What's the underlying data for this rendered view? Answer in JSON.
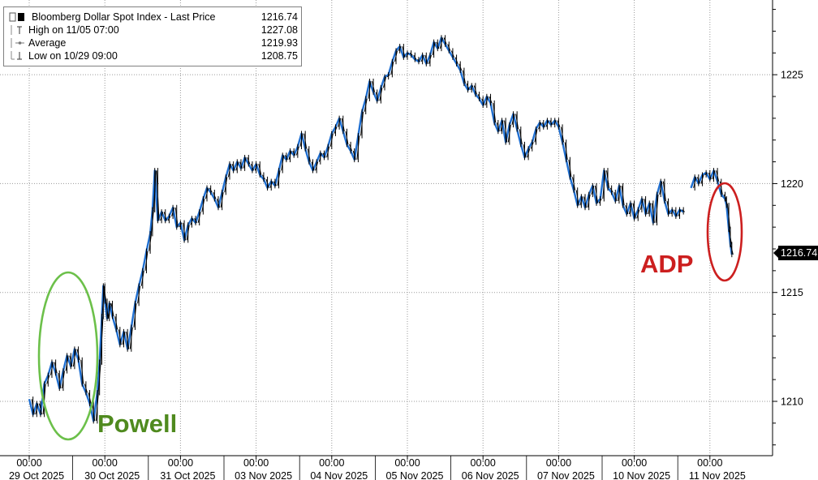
{
  "chart_data": {
    "type": "line",
    "title": "Bloomberg Dollar Spot Index - Last Price",
    "legend": [
      {
        "key": "last",
        "label": "Bloomberg Dollar Spot Index - Last Price",
        "value": "1216.74"
      },
      {
        "key": "high",
        "label": "High on 11/05 07:00",
        "value": "1227.08"
      },
      {
        "key": "avg",
        "label": "Average",
        "value": "1219.93"
      },
      {
        "key": "low",
        "label": "Low on 10/29 09:00",
        "value": "1208.75"
      }
    ],
    "last_price_label": "1216.74",
    "ylim": [
      1207.5,
      1228.3
    ],
    "y_ticks": [
      1210,
      1215,
      1220,
      1225
    ],
    "x_tick_time_label": "00:00",
    "x_days": [
      "29 Oct 2025",
      "30 Oct 2025",
      "31 Oct 2025",
      "03 Nov 2025",
      "04 Nov 2025",
      "05 Nov 2025",
      "06 Nov 2025",
      "07 Nov 2025",
      "10 Nov 2025",
      "11 Nov 2025"
    ],
    "grid": true,
    "colors": {
      "line": "#1f6fd1",
      "candle": "#000000",
      "powell": "#6cc04a",
      "adp": "#cc1f1f"
    },
    "annotations": [
      {
        "text": "Powell",
        "color": "#4f8a1e"
      },
      {
        "text": "ADP",
        "color": "#cc1f1f"
      }
    ],
    "series": [
      {
        "name": "Bloomberg Dollar Spot Index - Last Price",
        "points": [
          [
            0.0,
            1210.1
          ],
          [
            0.05,
            1209.4
          ],
          [
            0.1,
            1209.9
          ],
          [
            0.15,
            1209.4
          ],
          [
            0.2,
            1210.8
          ],
          [
            0.25,
            1211.2
          ],
          [
            0.3,
            1211.8
          ],
          [
            0.35,
            1211.3
          ],
          [
            0.4,
            1210.6
          ],
          [
            0.45,
            1211.4
          ],
          [
            0.5,
            1212.1
          ],
          [
            0.55,
            1211.6
          ],
          [
            0.6,
            1212.4
          ],
          [
            0.65,
            1211.9
          ],
          [
            0.7,
            1210.8
          ],
          [
            0.75,
            1210.4
          ],
          [
            0.8,
            1209.9
          ],
          [
            0.85,
            1209.1
          ],
          [
            0.9,
            1210.4
          ],
          [
            0.93,
            1211.8
          ],
          [
            0.96,
            1213.9
          ],
          [
            0.98,
            1215.3
          ],
          [
            1.0,
            1214.6
          ],
          [
            1.03,
            1213.8
          ],
          [
            1.06,
            1214.5
          ],
          [
            1.1,
            1213.9
          ],
          [
            1.15,
            1213.3
          ],
          [
            1.2,
            1212.6
          ],
          [
            1.25,
            1213.2
          ],
          [
            1.3,
            1212.4
          ],
          [
            1.35,
            1213.4
          ],
          [
            1.4,
            1214.5
          ],
          [
            1.45,
            1215.3
          ],
          [
            1.5,
            1216.0
          ],
          [
            1.55,
            1216.9
          ],
          [
            1.6,
            1217.7
          ],
          [
            1.63,
            1218.8
          ],
          [
            1.66,
            1220.6
          ],
          [
            1.7,
            1218.3
          ],
          [
            1.75,
            1218.7
          ],
          [
            1.8,
            1218.3
          ],
          [
            1.85,
            1218.5
          ],
          [
            1.9,
            1218.9
          ],
          [
            1.95,
            1218.0
          ],
          [
            2.0,
            1218.2
          ],
          [
            2.05,
            1217.4
          ],
          [
            2.1,
            1218.1
          ],
          [
            2.15,
            1218.4
          ],
          [
            2.2,
            1218.2
          ],
          [
            2.25,
            1218.7
          ],
          [
            2.3,
            1219.3
          ],
          [
            2.35,
            1219.8
          ],
          [
            2.4,
            1219.6
          ],
          [
            2.45,
            1219.3
          ],
          [
            2.5,
            1218.9
          ],
          [
            2.55,
            1219.6
          ],
          [
            2.6,
            1220.3
          ],
          [
            2.65,
            1220.9
          ],
          [
            2.7,
            1220.6
          ],
          [
            2.75,
            1221.0
          ],
          [
            2.8,
            1220.7
          ],
          [
            2.85,
            1221.2
          ],
          [
            2.9,
            1220.9
          ],
          [
            2.95,
            1220.6
          ],
          [
            3.0,
            1220.9
          ],
          [
            3.05,
            1220.4
          ],
          [
            3.1,
            1220.2
          ],
          [
            3.15,
            1219.8
          ],
          [
            3.2,
            1220.1
          ],
          [
            3.25,
            1219.9
          ],
          [
            3.3,
            1220.6
          ],
          [
            3.35,
            1221.3
          ],
          [
            3.4,
            1221.1
          ],
          [
            3.45,
            1221.5
          ],
          [
            3.5,
            1221.3
          ],
          [
            3.55,
            1221.7
          ],
          [
            3.6,
            1222.3
          ],
          [
            3.65,
            1221.6
          ],
          [
            3.7,
            1221.0
          ],
          [
            3.75,
            1220.6
          ],
          [
            3.8,
            1221.0
          ],
          [
            3.85,
            1221.4
          ],
          [
            3.9,
            1221.2
          ],
          [
            3.95,
            1221.7
          ],
          [
            4.0,
            1222.3
          ],
          [
            4.05,
            1222.6
          ],
          [
            4.1,
            1223.0
          ],
          [
            4.15,
            1222.4
          ],
          [
            4.2,
            1221.8
          ],
          [
            4.25,
            1221.5
          ],
          [
            4.3,
            1221.1
          ],
          [
            4.35,
            1222.2
          ],
          [
            4.4,
            1223.3
          ],
          [
            4.45,
            1223.9
          ],
          [
            4.5,
            1224.7
          ],
          [
            4.55,
            1224.2
          ],
          [
            4.6,
            1223.8
          ],
          [
            4.65,
            1224.4
          ],
          [
            4.7,
            1224.9
          ],
          [
            4.75,
            1225.0
          ],
          [
            4.8,
            1225.6
          ],
          [
            4.85,
            1226.1
          ],
          [
            4.9,
            1226.3
          ],
          [
            4.95,
            1225.8
          ],
          [
            5.0,
            1226.0
          ],
          [
            5.05,
            1225.9
          ],
          [
            5.1,
            1225.7
          ],
          [
            5.15,
            1225.6
          ],
          [
            5.2,
            1225.9
          ],
          [
            5.25,
            1225.5
          ],
          [
            5.3,
            1225.9
          ],
          [
            5.35,
            1226.5
          ],
          [
            5.4,
            1226.2
          ],
          [
            5.45,
            1226.7
          ],
          [
            5.5,
            1226.4
          ],
          [
            5.55,
            1226.1
          ],
          [
            5.6,
            1225.8
          ],
          [
            5.65,
            1225.5
          ],
          [
            5.7,
            1225.2
          ],
          [
            5.75,
            1224.6
          ],
          [
            5.8,
            1224.3
          ],
          [
            5.85,
            1224.5
          ],
          [
            5.9,
            1224.1
          ],
          [
            5.95,
            1223.9
          ],
          [
            6.0,
            1223.6
          ],
          [
            6.05,
            1224.0
          ],
          [
            6.1,
            1223.7
          ],
          [
            6.15,
            1222.8
          ],
          [
            6.2,
            1222.4
          ],
          [
            6.25,
            1222.9
          ],
          [
            6.3,
            1221.9
          ],
          [
            6.35,
            1222.7
          ],
          [
            6.4,
            1223.2
          ],
          [
            6.45,
            1222.5
          ],
          [
            6.5,
            1221.8
          ],
          [
            6.55,
            1221.2
          ],
          [
            6.6,
            1221.6
          ],
          [
            6.65,
            1221.9
          ],
          [
            6.7,
            1222.5
          ],
          [
            6.75,
            1222.8
          ],
          [
            6.8,
            1222.6
          ],
          [
            6.85,
            1222.9
          ],
          [
            6.9,
            1222.7
          ],
          [
            6.95,
            1222.9
          ],
          [
            7.0,
            1222.6
          ],
          [
            7.05,
            1221.9
          ],
          [
            7.1,
            1221.1
          ],
          [
            7.15,
            1220.3
          ],
          [
            7.2,
            1219.7
          ],
          [
            7.25,
            1219.0
          ],
          [
            7.3,
            1219.4
          ],
          [
            7.35,
            1218.9
          ],
          [
            7.4,
            1219.5
          ],
          [
            7.45,
            1219.9
          ],
          [
            7.5,
            1219.1
          ],
          [
            7.55,
            1219.3
          ],
          [
            7.6,
            1220.6
          ],
          [
            7.65,
            1219.8
          ],
          [
            7.7,
            1219.6
          ],
          [
            7.75,
            1219.2
          ],
          [
            7.8,
            1219.9
          ],
          [
            7.85,
            1219.0
          ],
          [
            7.9,
            1218.6
          ],
          [
            7.95,
            1219.1
          ],
          [
            8.0,
            1218.4
          ],
          [
            8.05,
            1218.8
          ],
          [
            8.1,
            1219.3
          ],
          [
            8.15,
            1218.6
          ],
          [
            8.2,
            1219.1
          ],
          [
            8.25,
            1218.2
          ],
          [
            8.3,
            1219.5
          ],
          [
            8.35,
            1220.1
          ],
          [
            8.4,
            1219.2
          ],
          [
            8.45,
            1218.6
          ],
          [
            8.5,
            1218.8
          ],
          [
            8.55,
            1218.5
          ],
          [
            8.6,
            1218.8
          ],
          [
            8.65,
            1218.7
          ],
          [
            8.75,
            1219.8
          ],
          [
            8.8,
            1220.3
          ],
          [
            8.85,
            1220.0
          ],
          [
            8.9,
            1220.4
          ],
          [
            8.95,
            1220.5
          ],
          [
            9.0,
            1220.2
          ],
          [
            9.05,
            1220.6
          ],
          [
            9.1,
            1220.1
          ],
          [
            9.15,
            1219.5
          ],
          [
            9.2,
            1219.3
          ],
          [
            9.22,
            1219.0
          ],
          [
            9.25,
            1217.9
          ],
          [
            9.27,
            1217.2
          ],
          [
            9.29,
            1216.74
          ]
        ]
      }
    ]
  }
}
